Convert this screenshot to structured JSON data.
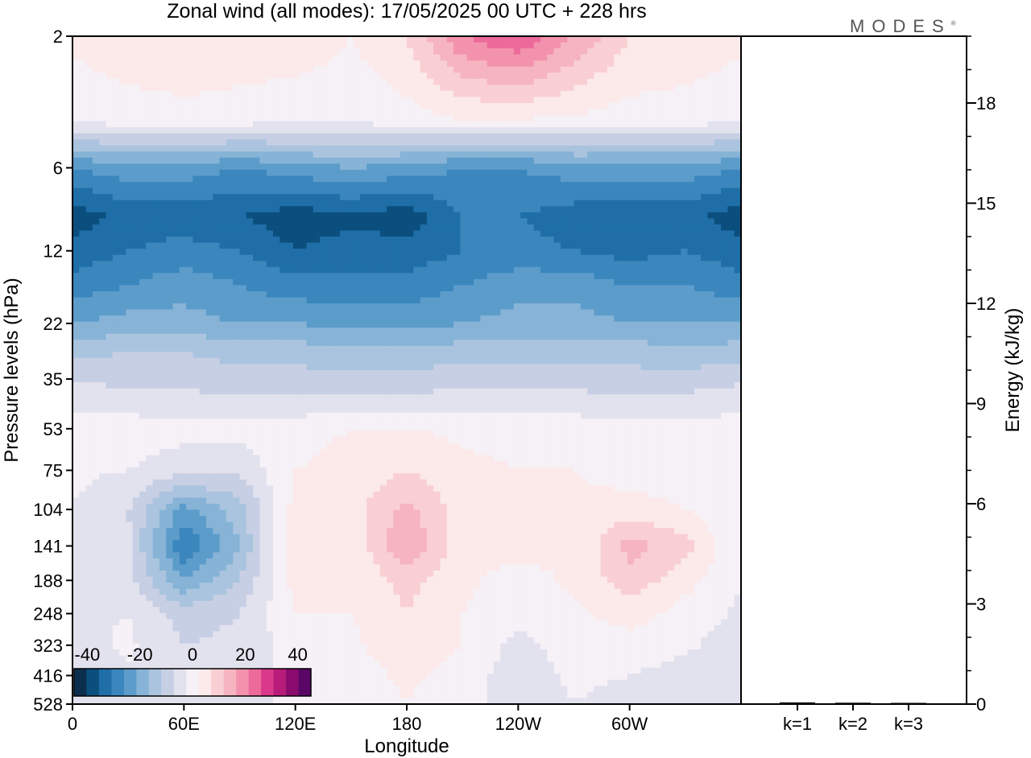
{
  "chart_data": [
    {
      "type": "heatmap",
      "title": "Zonal wind (all modes):  17/05/2025  00 UTC  + 228 hrs",
      "xlabel": "Longitude",
      "ylabel": "Pressure levels (hPa)",
      "x_ticks": [
        "0",
        "60E",
        "120E",
        "180",
        "120W",
        "60W"
      ],
      "y_ticks": [
        "2",
        "6",
        "12",
        "22",
        "35",
        "53",
        "75",
        "104",
        "141",
        "188",
        "248",
        "323",
        "416",
        "528"
      ],
      "xlim_deg_east": [
        0,
        360
      ],
      "colorbar": {
        "tick_labels": [
          "-40",
          "-20",
          "0",
          "20",
          "40"
        ],
        "levels": [
          -45,
          -40,
          -35,
          -30,
          -25,
          -20,
          -15,
          -10,
          -5,
          0,
          5,
          10,
          15,
          20,
          25,
          30,
          35,
          40,
          45
        ],
        "colors": [
          "#0b2e4f",
          "#0b4f7e",
          "#1f6ea8",
          "#3a86bd",
          "#5c9ccb",
          "#86b3d6",
          "#aac4df",
          "#c7cfe4",
          "#e2e1ee",
          "#f6f1f6",
          "#fce9ea",
          "#f9cfd4",
          "#f6b4c0",
          "#f392ad",
          "#ec6b9b",
          "#d9388b",
          "#b71c7b",
          "#8a0a6e",
          "#5a0666"
        ]
      },
      "zonal_wind_ms": {
        "columns_deg_east": [
          0,
          30,
          60,
          90,
          120,
          150,
          180,
          210,
          240,
          270,
          300,
          330,
          360
        ],
        "rows": [
          {
            "p": 2,
            "u": [
              6,
              8,
              10,
              8,
              8,
              5,
              10,
              25,
              30,
              20,
              10,
              8,
              6
            ]
          },
          {
            "p": 4,
            "u": [
              2,
              3,
              3,
              3,
              2,
              2,
              3,
              5,
              5,
              4,
              3,
              3,
              2
            ]
          },
          {
            "p": 6,
            "u": [
              -25,
              -22,
              -22,
              -25,
              -22,
              -20,
              -22,
              -25,
              -25,
              -22,
              -22,
              -22,
              -25
            ]
          },
          {
            "p": 9,
            "u": [
              -38,
              -33,
              -33,
              -35,
              -38,
              -36,
              -38,
              -30,
              -30,
              -33,
              -35,
              -33,
              -38
            ]
          },
          {
            "p": 12,
            "u": [
              -33,
              -30,
              -28,
              -30,
              -35,
              -33,
              -33,
              -30,
              -28,
              -30,
              -32,
              -30,
              -33
            ]
          },
          {
            "p": 16,
            "u": [
              -28,
              -25,
              -22,
              -25,
              -28,
              -28,
              -28,
              -25,
              -22,
              -22,
              -25,
              -25,
              -28
            ]
          },
          {
            "p": 22,
            "u": [
              -20,
              -18,
              -18,
              -20,
              -20,
              -22,
              -22,
              -20,
              -18,
              -18,
              -20,
              -20,
              -20
            ]
          },
          {
            "p": 28,
            "u": [
              -12,
              -10,
              -10,
              -12,
              -12,
              -14,
              -14,
              -12,
              -12,
              -12,
              -12,
              -14,
              -12
            ]
          },
          {
            "p": 35,
            "u": [
              -6,
              -6,
              -7,
              -8,
              -8,
              -8,
              -8,
              -7,
              -7,
              -7,
              -8,
              -8,
              -6
            ]
          },
          {
            "p": 44,
            "u": [
              -1,
              -2,
              -2,
              -3,
              -3,
              -3,
              -2,
              -2,
              -2,
              -2,
              -3,
              -2,
              -1
            ]
          },
          {
            "p": 53,
            "u": [
              2,
              3,
              2,
              2,
              4,
              5,
              5,
              4,
              4,
              3,
              3,
              2,
              2
            ]
          },
          {
            "p": 75,
            "u": [
              1,
              0,
              -3,
              -4,
              5,
              6,
              10,
              6,
              5,
              5,
              3,
              2,
              1
            ]
          },
          {
            "p": 104,
            "u": [
              0,
              -5,
              -22,
              -12,
              7,
              8,
              17,
              7,
              6,
              6,
              7,
              5,
              0
            ]
          },
          {
            "p": 141,
            "u": [
              0,
              -4,
              -30,
              -15,
              9,
              6,
              20,
              7,
              7,
              5,
              17,
              12,
              0
            ]
          },
          {
            "p": 188,
            "u": [
              0,
              -3,
              -20,
              -10,
              7,
              5,
              12,
              6,
              3,
              6,
              13,
              7,
              0
            ]
          },
          {
            "p": 248,
            "u": [
              -1,
              0,
              -7,
              -5,
              5,
              5,
              10,
              5,
              2,
              4,
              7,
              3,
              -1
            ]
          },
          {
            "p": 323,
            "u": [
              -2,
              1,
              -5,
              -4,
              3,
              4,
              8,
              5,
              -2,
              3,
              3,
              1,
              -3
            ]
          },
          {
            "p": 416,
            "u": [
              -3,
              -1,
              -4,
              -3,
              2,
              3,
              6,
              3,
              -3,
              1,
              0,
              -2,
              -4
            ]
          },
          {
            "p": 528,
            "u": [
              -3,
              -2,
              -3,
              -2,
              1,
              2,
              5,
              2,
              -3,
              0,
              -2,
              -3,
              -4
            ]
          }
        ]
      }
    },
    {
      "type": "bar",
      "ylabel": "Energy (kJ/kg)",
      "categories": [
        "k=1",
        "k=2",
        "k=3"
      ],
      "values": [
        0.05,
        0.04,
        0.03
      ],
      "ylim": [
        0,
        20
      ],
      "y_ticks": [
        "0",
        "3",
        "6",
        "9",
        "12",
        "15",
        "18"
      ]
    }
  ],
  "logo_text": "MODES"
}
